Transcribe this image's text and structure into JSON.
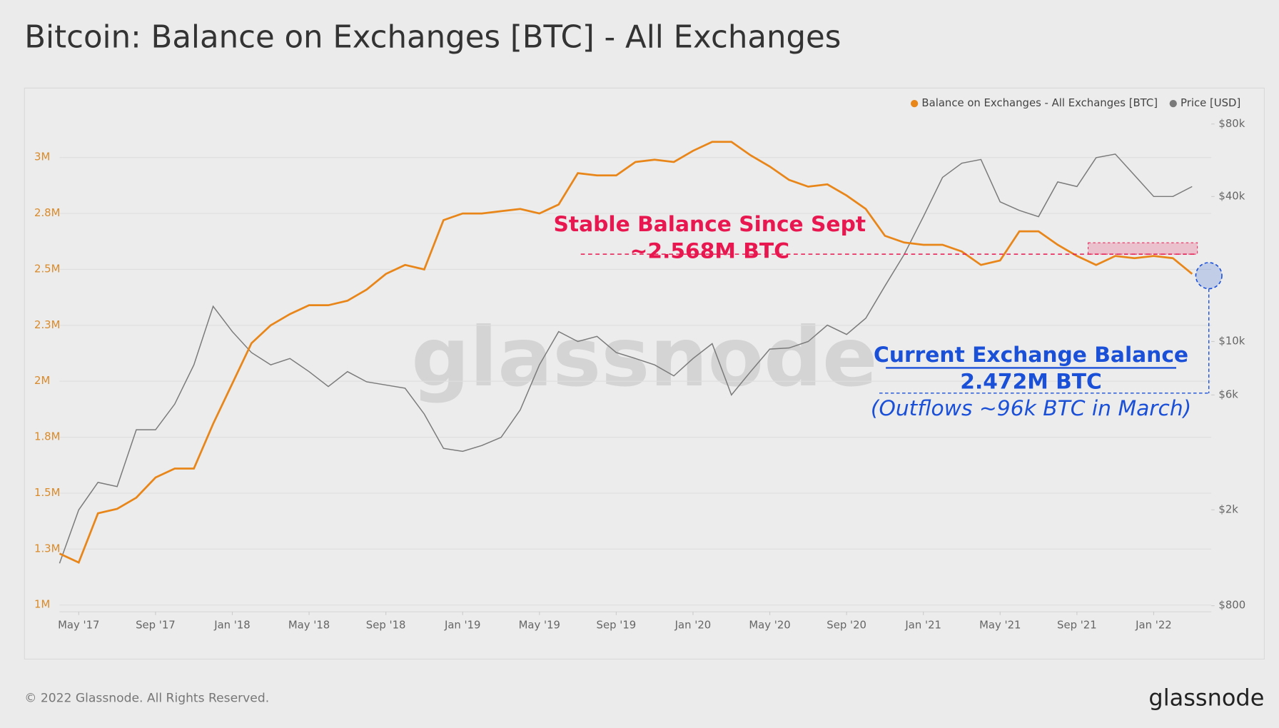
{
  "chart_data": {
    "type": "line",
    "title": "Bitcoin: Balance on Exchanges [BTC] - All Exchanges",
    "watermark": "glassnode",
    "x": [
      "2017-04",
      "2017-05",
      "2017-06",
      "2017-07",
      "2017-08",
      "2017-09",
      "2017-10",
      "2017-11",
      "2017-12",
      "2018-01",
      "2018-02",
      "2018-03",
      "2018-04",
      "2018-05",
      "2018-06",
      "2018-07",
      "2018-08",
      "2018-09",
      "2018-10",
      "2018-11",
      "2018-12",
      "2019-01",
      "2019-02",
      "2019-03",
      "2019-04",
      "2019-05",
      "2019-06",
      "2019-07",
      "2019-08",
      "2019-09",
      "2019-10",
      "2019-11",
      "2019-12",
      "2020-01",
      "2020-02",
      "2020-03",
      "2020-04",
      "2020-05",
      "2020-06",
      "2020-07",
      "2020-08",
      "2020-09",
      "2020-10",
      "2020-11",
      "2020-12",
      "2021-01",
      "2021-02",
      "2021-03",
      "2021-04",
      "2021-05",
      "2021-06",
      "2021-07",
      "2021-08",
      "2021-09",
      "2021-10",
      "2021-11",
      "2021-12",
      "2022-01",
      "2022-02",
      "2022-03"
    ],
    "series": [
      {
        "name": "Balance on Exchanges - All Exchanges [BTC]",
        "color": "#e8861a",
        "axis": "y",
        "values": [
          1230000,
          1190000,
          1410000,
          1430000,
          1480000,
          1570000,
          1610000,
          1610000,
          1810000,
          1990000,
          2170000,
          2250000,
          2300000,
          2340000,
          2340000,
          2360000,
          2410000,
          2480000,
          2520000,
          2500000,
          2720000,
          2750000,
          2750000,
          2760000,
          2770000,
          2750000,
          2790000,
          2930000,
          2920000,
          2920000,
          2980000,
          2990000,
          2980000,
          3030000,
          3070000,
          3070000,
          3010000,
          2960000,
          2900000,
          2870000,
          2880000,
          2830000,
          2770000,
          2650000,
          2620000,
          2610000,
          2610000,
          2580000,
          2520000,
          2540000,
          2670000,
          2670000,
          2610000,
          2560000,
          2520000,
          2560000,
          2550000,
          2560000,
          2550000,
          2480000
        ]
      },
      {
        "name": "Price [USD]",
        "color": "#7a7a7a",
        "axis": "y2",
        "values": [
          1200,
          2000,
          2600,
          2500,
          4300,
          4300,
          5500,
          8000,
          14000,
          11000,
          9000,
          8000,
          8500,
          7500,
          6500,
          7500,
          6800,
          6600,
          6400,
          5000,
          3600,
          3500,
          3700,
          4000,
          5200,
          8000,
          11000,
          10000,
          10500,
          9000,
          8500,
          8000,
          7200,
          8500,
          9800,
          6000,
          7500,
          9300,
          9400,
          10000,
          11700,
          10700,
          12500,
          17000,
          23000,
          33000,
          48000,
          55000,
          57000,
          38000,
          35000,
          33000,
          46000,
          44000,
          58000,
          60000,
          49000,
          40000,
          40000,
          44000
        ]
      }
    ],
    "xlim": [
      "2017-04",
      "2022-04"
    ],
    "xticks": [
      {
        "value": "2017-05",
        "label": "May '17"
      },
      {
        "value": "2017-09",
        "label": "Sep '17"
      },
      {
        "value": "2018-01",
        "label": "Jan '18"
      },
      {
        "value": "2018-05",
        "label": "May '18"
      },
      {
        "value": "2018-09",
        "label": "Sep '18"
      },
      {
        "value": "2019-01",
        "label": "Jan '19"
      },
      {
        "value": "2019-05",
        "label": "May '19"
      },
      {
        "value": "2019-09",
        "label": "Sep '19"
      },
      {
        "value": "2020-01",
        "label": "Jan '20"
      },
      {
        "value": "2020-05",
        "label": "May '20"
      },
      {
        "value": "2020-09",
        "label": "Sep '20"
      },
      {
        "value": "2021-01",
        "label": "Jan '21"
      },
      {
        "value": "2021-05",
        "label": "May '21"
      },
      {
        "value": "2021-09",
        "label": "Sep '21"
      },
      {
        "value": "2022-01",
        "label": "Jan '22"
      }
    ],
    "ylim": [
      970000,
      3230000
    ],
    "yticks": [
      {
        "value": 1000000,
        "label": "1M"
      },
      {
        "value": 1250000,
        "label": "1.3M"
      },
      {
        "value": 1500000,
        "label": "1.5M"
      },
      {
        "value": 1750000,
        "label": "1.8M"
      },
      {
        "value": 2000000,
        "label": "2M"
      },
      {
        "value": 2250000,
        "label": "2.3M"
      },
      {
        "value": 2500000,
        "label": "2.5M"
      },
      {
        "value": 2750000,
        "label": "2.8M"
      },
      {
        "value": 3000000,
        "label": "3M"
      }
    ],
    "y2lim": [
      755,
      95000
    ],
    "y2scale": "log",
    "y2ticks": [
      {
        "value": 800,
        "label": "$800"
      },
      {
        "value": 2000,
        "label": "$2k"
      },
      {
        "value": 6000,
        "label": "$6k"
      },
      {
        "value": 10000,
        "label": "$10k"
      },
      {
        "value": 40000,
        "label": "$40k"
      },
      {
        "value": 80000,
        "label": "$80k"
      }
    ],
    "grid": true,
    "legend": "top-right",
    "annotations": [
      {
        "text": "Stable Balance Since Sept",
        "color": "#e8174f"
      },
      {
        "text": "~2.568M BTC",
        "value": 2568000,
        "color": "#e8174f"
      },
      {
        "text": "Current Exchange Balance",
        "color": "#1a4fd8"
      },
      {
        "text": "2.472M BTC",
        "value": 2472000,
        "color": "#1a4fd8"
      },
      {
        "text": "(Outflows ~96k BTC in March)",
        "color": "#1a4fd8"
      }
    ]
  },
  "footer": {
    "copyright": "© 2022 Glassnode. All Rights Reserved.",
    "logo": "glassnode"
  }
}
